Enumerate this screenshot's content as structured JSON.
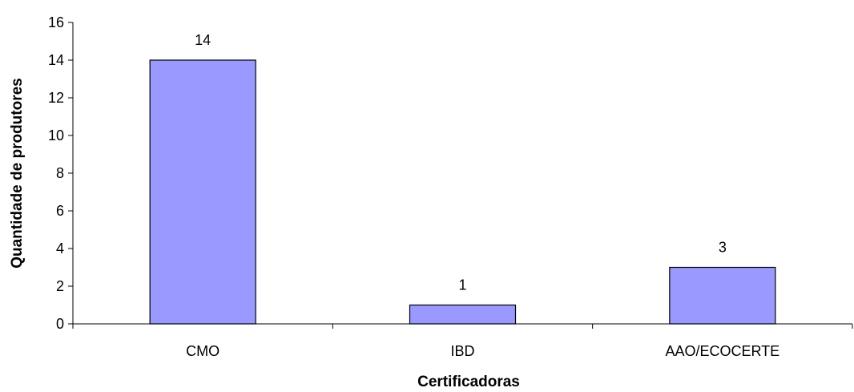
{
  "chart_data": {
    "type": "bar",
    "categories": [
      "CMO",
      "IBD",
      "AAO/ECOCERTE"
    ],
    "values": [
      14,
      1,
      3
    ],
    "data_labels": [
      "14",
      "1",
      "3"
    ],
    "xlabel": "Certificadoras",
    "ylabel": "Quantidade de produtores",
    "ylim": [
      0,
      16
    ],
    "yticks": [
      0,
      2,
      4,
      6,
      8,
      10,
      12,
      14,
      16
    ],
    "grid": false,
    "legend": "none",
    "bar_color": "#9999ff"
  }
}
